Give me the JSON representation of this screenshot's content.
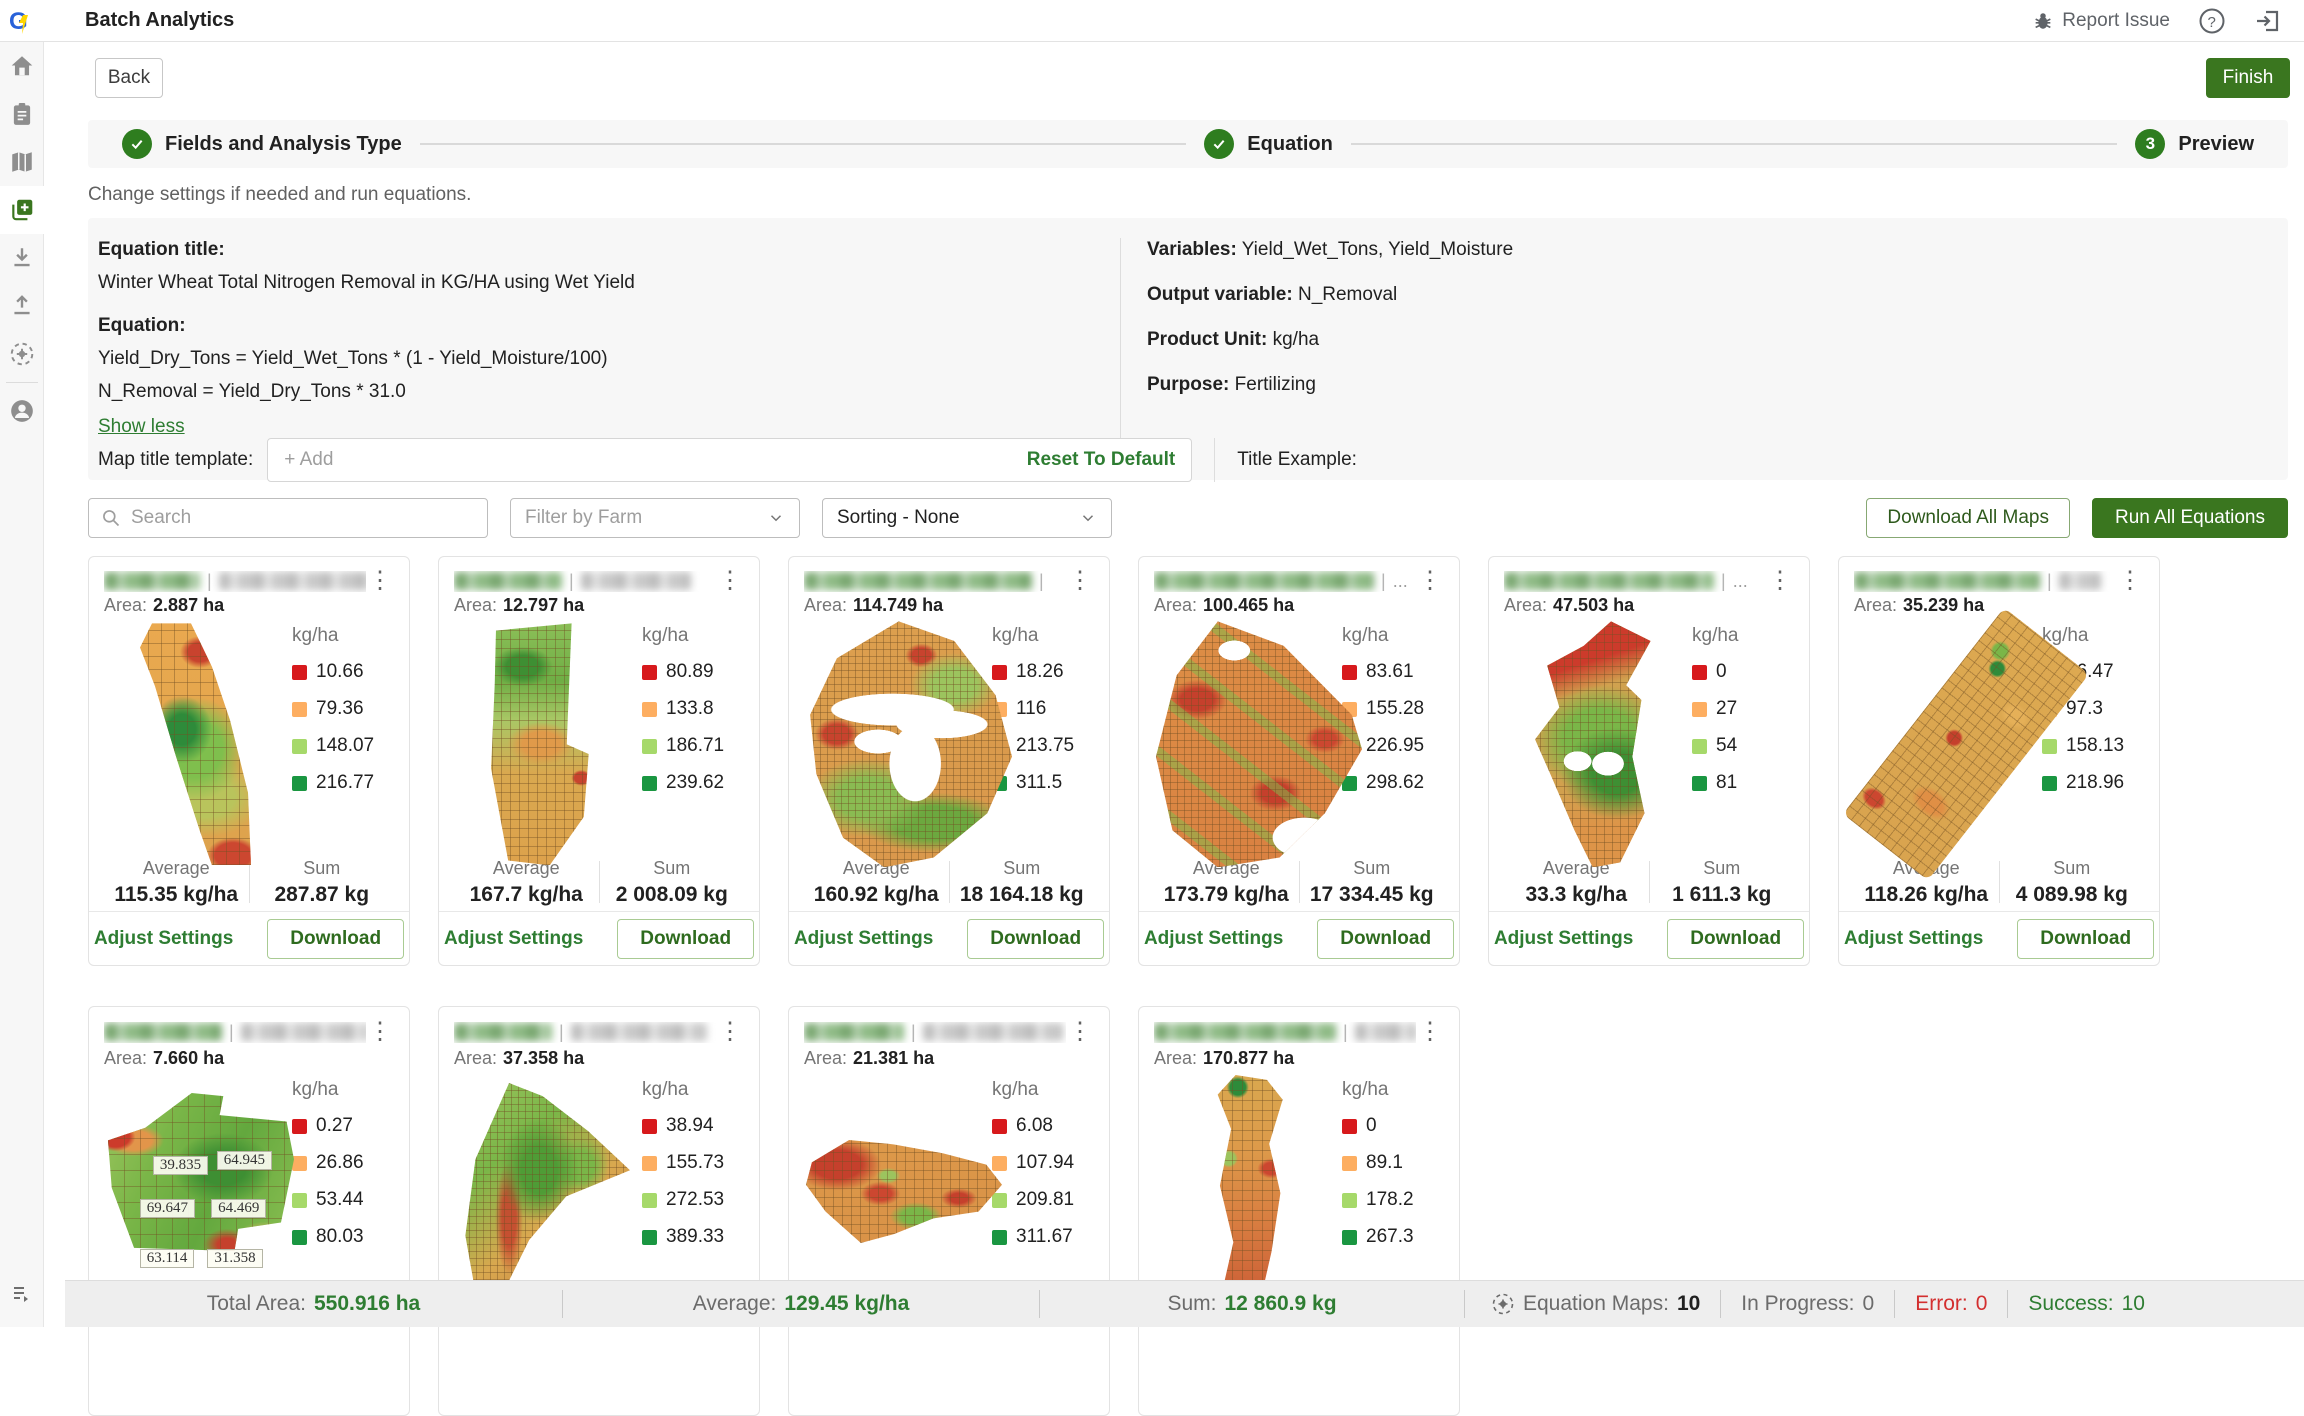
{
  "app": {
    "title": "Batch Analytics",
    "report_issue": "Report Issue"
  },
  "header": {
    "back": "Back",
    "finish": "Finish"
  },
  "stepper": {
    "steps": [
      {
        "label": "Fields and Analysis Type",
        "state": "done"
      },
      {
        "label": "Equation",
        "state": "done"
      },
      {
        "label": "Preview",
        "state": "current",
        "number": "3"
      }
    ]
  },
  "intro": "Change settings if needed and run equations.",
  "equation_panel": {
    "title_label": "Equation title:",
    "title": "Winter Wheat Total Nitrogen Removal in KG/HA using Wet Yield",
    "equation_label": "Equation:",
    "equation_line1": "Yield_Dry_Tons = Yield_Wet_Tons * (1 - Yield_Moisture/100)",
    "equation_line2": "N_Removal = Yield_Dry_Tons * 31.0",
    "show_less": "Show less",
    "variables_label": "Variables:",
    "variables": "Yield_Wet_Tons, Yield_Moisture",
    "output_label": "Output variable:",
    "output": "N_Removal",
    "unit_label": "Product Unit:",
    "unit": "kg/ha",
    "purpose_label": "Purpose:",
    "purpose": "Fertilizing"
  },
  "map_title_template": {
    "label": "Map title template:",
    "placeholder": "+ Add",
    "reset": "Reset To Default",
    "example_label": "Title Example:"
  },
  "toolbar": {
    "search_placeholder": "Search",
    "filter_placeholder": "Filter by Farm",
    "sorting_value": "Sorting - None",
    "download_all": "Download All Maps",
    "run_all": "Run All Equations"
  },
  "legend_colors": [
    "#d7191c",
    "#fdae61",
    "#a6d96a",
    "#1a9641"
  ],
  "cards": [
    {
      "blur": [
        96,
        164
      ],
      "title_suffix": "",
      "area_label": "Area:",
      "area": "2.887 ha",
      "unit": "kg/ha",
      "legend": [
        "10.66",
        "79.36",
        "148.07",
        "216.77"
      ],
      "average_label": "Average",
      "average": "115.35 kg/ha",
      "sum_label": "Sum",
      "sum": "287.87 kg",
      "adjust": "Adjust Settings",
      "download": "Download"
    },
    {
      "blur": [
        108,
        110
      ],
      "title_suffix": "",
      "area_label": "Area:",
      "area": "12.797 ha",
      "unit": "kg/ha",
      "legend": [
        "80.89",
        "133.8",
        "186.71",
        "239.62"
      ],
      "average_label": "Average",
      "average": "167.7 kg/ha",
      "sum_label": "Sum",
      "sum": "2 008.09 kg",
      "adjust": "Adjust Settings",
      "download": "Download"
    },
    {
      "blur": [
        228,
        0
      ],
      "title_suffix": "",
      "area_label": "Area:",
      "area": "114.749 ha",
      "unit": "kg/ha",
      "legend": [
        "18.26",
        "116",
        "213.75",
        "311.5"
      ],
      "average_label": "Average",
      "average": "160.92 kg/ha",
      "sum_label": "Sum",
      "sum": "18 164.18 kg",
      "adjust": "Adjust Settings",
      "download": "Download"
    },
    {
      "blur": [
        220,
        0
      ],
      "title_suffix": "...",
      "area_label": "Area:",
      "area": "100.465 ha",
      "unit": "kg/ha",
      "legend": [
        "83.61",
        "155.28",
        "226.95",
        "298.62"
      ],
      "average_label": "Average",
      "average": "173.79 kg/ha",
      "sum_label": "Sum",
      "sum": "17 334.45 kg",
      "adjust": "Adjust Settings",
      "download": "Download"
    },
    {
      "blur": [
        210,
        0
      ],
      "title_suffix": "...",
      "area_label": "Area:",
      "area": "47.503 ha",
      "unit": "kg/ha",
      "legend": [
        "0",
        "27",
        "54",
        "81"
      ],
      "average_label": "Average",
      "average": "33.3 kg/ha",
      "sum_label": "Sum",
      "sum": "1 611.3 kg",
      "adjust": "Adjust Settings",
      "download": "Download"
    },
    {
      "blur": [
        186,
        42
      ],
      "title_suffix": "",
      "area_label": "Area:",
      "area": "35.239 ha",
      "unit": "kg/ha",
      "legend": [
        "36.47",
        "97.3",
        "158.13",
        "218.96"
      ],
      "average_label": "Average",
      "average": "118.26 kg/ha",
      "sum_label": "Sum",
      "sum": "4 089.98 kg",
      "adjust": "Adjust Settings",
      "download": "Download"
    },
    {
      "blur": [
        118,
        128
      ],
      "title_suffix": "",
      "area_label": "Area:",
      "area": "7.660 ha",
      "unit": "kg/ha",
      "legend": [
        "0.27",
        "26.86",
        "53.44",
        "80.03"
      ],
      "map_labels": [
        "39.835",
        "64.945",
        "69.647",
        "64.469",
        "63.114",
        "31.358"
      ]
    },
    {
      "blur": [
        98,
        136
      ],
      "title_suffix": "",
      "area_label": "Area:",
      "area": "37.358 ha",
      "unit": "kg/ha",
      "legend": [
        "38.94",
        "155.73",
        "272.53",
        "389.33"
      ]
    },
    {
      "blur": [
        100,
        140
      ],
      "title_suffix": "",
      "area_label": "Area:",
      "area": "21.381 ha",
      "unit": "kg/ha",
      "legend": [
        "6.08",
        "107.94",
        "209.81",
        "311.67"
      ]
    },
    {
      "blur": [
        182,
        62
      ],
      "title_suffix": "",
      "area_label": "Area:",
      "area": "170.877 ha",
      "unit": "kg/ha",
      "legend": [
        "0",
        "89.1",
        "178.2",
        "267.3"
      ]
    }
  ],
  "footer": {
    "total_area_label": "Total Area:",
    "total_area": "550.916 ha",
    "average_label": "Average:",
    "average": "129.45 kg/ha",
    "sum_label": "Sum:",
    "sum": "12 860.9 kg",
    "maps_label": "Equation Maps:",
    "maps": "10",
    "in_progress_label": "In Progress:",
    "in_progress": "0",
    "error_label": "Error:",
    "error": "0",
    "success_label": "Success:",
    "success": "10"
  }
}
